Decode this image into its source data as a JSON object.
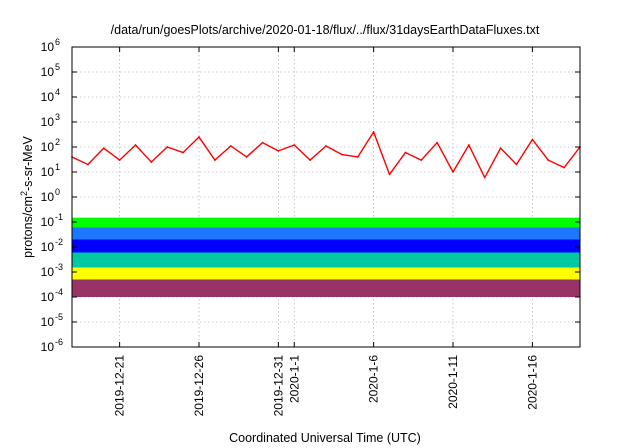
{
  "chart_data": {
    "type": "line",
    "title": "/data/run/goesPlots/archive/2020-01-18/flux/../flux/31daysEarthDataFluxes.txt",
    "xlabel": "Coordinated Universal Time (UTC)",
    "ylabel": {
      "prefix": "protons/cm",
      "sup": "2",
      "suffix": "-s-sr-MeV"
    },
    "xlim": [
      "2019-12-18T00:00",
      "2020-01-19T00:00"
    ],
    "ylim": [
      1e-06,
      1000000.0
    ],
    "yscale": "log",
    "grid": true,
    "legend": "none",
    "y_ticks": [
      {
        "value": 1e-06,
        "base": "10",
        "exp": "-6"
      },
      {
        "value": 1e-05,
        "base": "10",
        "exp": "-5"
      },
      {
        "value": 0.0001,
        "base": "10",
        "exp": "-4"
      },
      {
        "value": 0.001,
        "base": "10",
        "exp": "-3"
      },
      {
        "value": 0.01,
        "base": "10",
        "exp": "-2"
      },
      {
        "value": 0.1,
        "base": "10",
        "exp": "-1"
      },
      {
        "value": 1.0,
        "base": "10",
        "exp": "0"
      },
      {
        "value": 10.0,
        "base": "10",
        "exp": "1"
      },
      {
        "value": 100.0,
        "base": "10",
        "exp": "2"
      },
      {
        "value": 1000.0,
        "base": "10",
        "exp": "3"
      },
      {
        "value": 10000.0,
        "base": "10",
        "exp": "4"
      },
      {
        "value": 100000.0,
        "base": "10",
        "exp": "5"
      },
      {
        "value": 1000000.0,
        "base": "10",
        "exp": "6"
      }
    ],
    "x_ticks": [
      {
        "date": "2019-12-21",
        "label": "2019-12-21"
      },
      {
        "date": "2019-12-26",
        "label": "2019-12-26"
      },
      {
        "date": "2019-12-31",
        "label": "2019-12-31"
      },
      {
        "date": "2020-01-01",
        "label": "2020-1-1"
      },
      {
        "date": "2020-01-06",
        "label": "2020-1-6"
      },
      {
        "date": "2020-01-11",
        "label": "2020-1-11"
      },
      {
        "date": "2020-01-16",
        "label": "2020-1-16"
      }
    ],
    "series": [
      {
        "color": "#ff0000",
        "style": "line",
        "x": [
          "2019-12-18T00:00",
          "2019-12-19T00:00",
          "2019-12-20T00:00",
          "2019-12-21T00:00",
          "2019-12-22T00:00",
          "2019-12-23T00:00",
          "2019-12-24T00:00",
          "2019-12-25T00:00",
          "2019-12-26T00:00",
          "2019-12-27T00:00",
          "2019-12-28T00:00",
          "2019-12-29T00:00",
          "2019-12-30T00:00",
          "2019-12-31T00:00",
          "2020-01-01T00:00",
          "2020-01-02T00:00",
          "2020-01-03T00:00",
          "2020-01-04T00:00",
          "2020-01-05T00:00",
          "2020-01-06T00:00",
          "2020-01-07T00:00",
          "2020-01-08T00:00",
          "2020-01-09T00:00",
          "2020-01-10T00:00",
          "2020-01-11T00:00",
          "2020-01-12T00:00",
          "2020-01-13T00:00",
          "2020-01-14T00:00",
          "2020-01-15T00:00",
          "2020-01-16T00:00",
          "2020-01-17T00:00",
          "2020-01-18T00:00",
          "2020-01-19T00:00"
        ],
        "y": [
          40,
          20,
          90,
          30,
          120,
          25,
          100,
          60,
          250,
          30,
          110,
          40,
          150,
          70,
          120,
          30,
          110,
          50,
          40,
          400,
          8,
          60,
          30,
          150,
          10,
          120,
          6,
          90,
          20,
          200,
          30,
          15,
          100
        ]
      },
      {
        "color": "#00ff00",
        "style": "band",
        "x": [
          "2019-12-18T00:00",
          "2020-01-19T00:00"
        ],
        "y_low": [
          0.02,
          0.02
        ],
        "y_high": [
          0.15,
          0.15
        ]
      },
      {
        "color": "#1e78ff",
        "style": "band",
        "x": [
          "2019-12-18T00:00",
          "2020-01-19T00:00"
        ],
        "y_low": [
          0.004,
          0.004
        ],
        "y_high": [
          0.06,
          0.06
        ]
      },
      {
        "color": "#0000ff",
        "style": "band",
        "x": [
          "2019-12-18T00:00",
          "2020-01-19T00:00"
        ],
        "y_low": [
          0.005,
          0.005
        ],
        "y_high": [
          0.02,
          0.02
        ]
      },
      {
        "color": "#00c8a0",
        "style": "band",
        "x": [
          "2019-12-18T00:00",
          "2020-01-19T00:00"
        ],
        "y_low": [
          0.0015,
          0.0015
        ],
        "y_high": [
          0.006,
          0.006
        ]
      },
      {
        "color": "#ffff00",
        "style": "band",
        "x": [
          "2019-12-18T00:00",
          "2020-01-19T00:00"
        ],
        "y_low": [
          0.0003,
          0.0003
        ],
        "y_high": [
          0.0015,
          0.0015
        ]
      },
      {
        "color": "#993366",
        "style": "band",
        "x": [
          "2019-12-18T00:00",
          "2020-01-19T00:00"
        ],
        "y_low": [
          0.0001,
          0.0001
        ],
        "y_high": [
          0.0005,
          0.0005
        ]
      }
    ]
  }
}
